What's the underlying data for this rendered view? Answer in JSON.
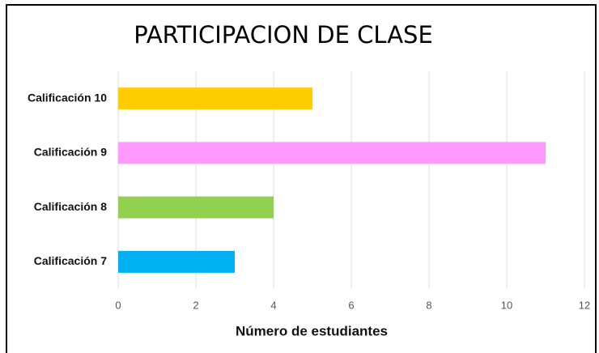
{
  "chart_data": {
    "type": "hbar",
    "title": "PARTICIPACION DE CLASE",
    "categories": [
      "Calificación 10",
      "Calificación 9",
      "Calificación 8",
      "Calificación 7"
    ],
    "values": [
      5,
      11,
      4,
      3
    ],
    "colors": [
      "#ffcc00",
      "#ff99ff",
      "#92d050",
      "#00b0f0"
    ],
    "xlabel": "Número de estudiantes",
    "xlim": [
      0,
      12
    ],
    "xticks": [
      0,
      2,
      4,
      6,
      8,
      10,
      12
    ],
    "grid": true
  }
}
